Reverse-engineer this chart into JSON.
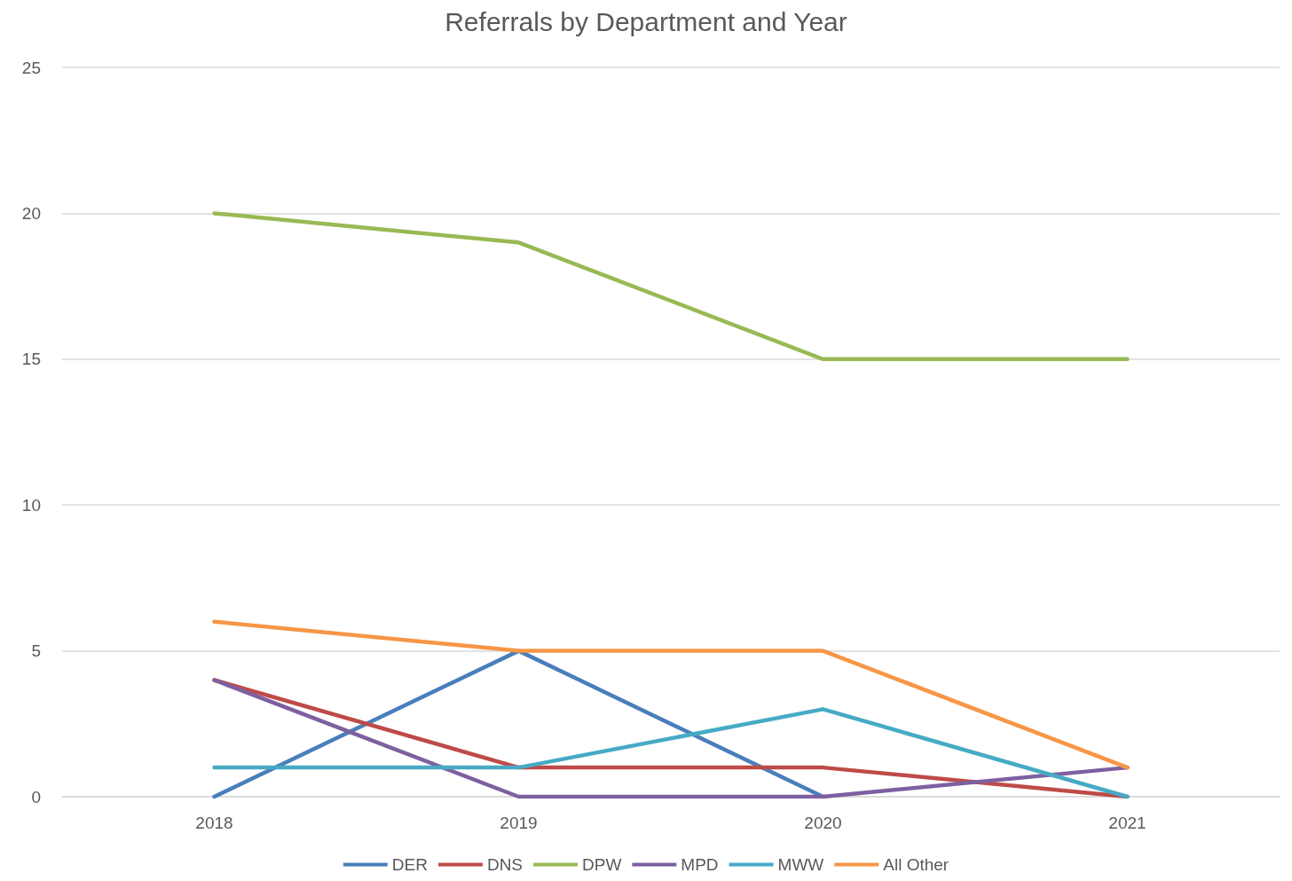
{
  "chart_data": {
    "type": "line",
    "title": "Referrals by Department and Year",
    "categories": [
      "2018",
      "2019",
      "2020",
      "2021"
    ],
    "series": [
      {
        "name": "DER",
        "color": "#4a7ebb",
        "values": [
          0,
          5,
          0,
          null
        ]
      },
      {
        "name": "DNS",
        "color": "#be4b48",
        "values": [
          4,
          1,
          1,
          0
        ]
      },
      {
        "name": "DPW",
        "color": "#98b954",
        "values": [
          20,
          19,
          15,
          15
        ]
      },
      {
        "name": "MPD",
        "color": "#7d60a0",
        "values": [
          4,
          0,
          0,
          1
        ]
      },
      {
        "name": "MWW",
        "color": "#46aac5",
        "values": [
          1,
          1,
          3,
          0
        ]
      },
      {
        "name": "All Other",
        "color": "#f79646",
        "values": [
          6,
          5,
          5,
          1
        ]
      }
    ],
    "ylim": [
      0,
      25
    ],
    "yticks": [
      0,
      5,
      10,
      15,
      20,
      25
    ],
    "grid": "y",
    "legend": "bottom",
    "marker": "none",
    "line_style": "solid"
  }
}
